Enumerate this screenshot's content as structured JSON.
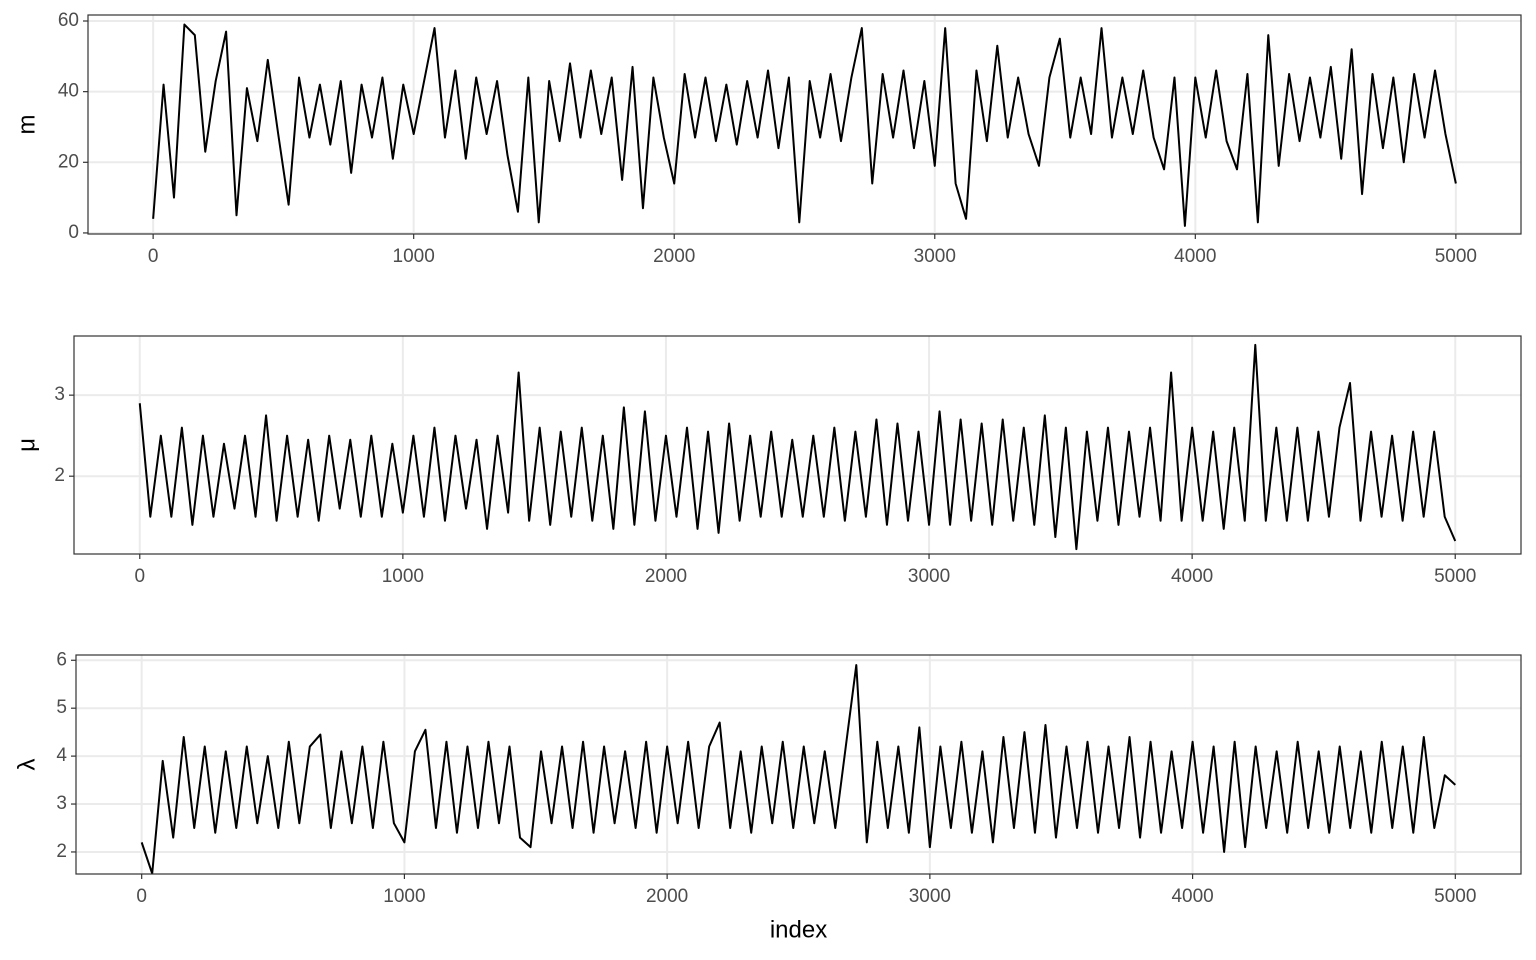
{
  "chart_data": [
    {
      "type": "line",
      "y_label": "m",
      "x": [
        0,
        40,
        80,
        120,
        160,
        200,
        240,
        280,
        320,
        360,
        400,
        440,
        480,
        520,
        560,
        600,
        640,
        680,
        720,
        760,
        800,
        840,
        880,
        920,
        960,
        1000,
        1040,
        1080,
        1120,
        1160,
        1200,
        1240,
        1280,
        1320,
        1360,
        1400,
        1440,
        1480,
        1520,
        1560,
        1600,
        1640,
        1680,
        1720,
        1760,
        1800,
        1840,
        1880,
        1920,
        1960,
        2000,
        2040,
        2080,
        2120,
        2160,
        2200,
        2240,
        2280,
        2320,
        2360,
        2400,
        2440,
        2480,
        2520,
        2560,
        2600,
        2640,
        2680,
        2720,
        2760,
        2800,
        2840,
        2880,
        2920,
        2960,
        3000,
        3040,
        3080,
        3120,
        3160,
        3200,
        3240,
        3280,
        3320,
        3360,
        3400,
        3440,
        3480,
        3520,
        3560,
        3600,
        3640,
        3680,
        3720,
        3760,
        3800,
        3840,
        3880,
        3920,
        3960,
        4000,
        4040,
        4080,
        4120,
        4160,
        4200,
        4240,
        4280,
        4320,
        4360,
        4400,
        4440,
        4480,
        4520,
        4560,
        4600,
        4640,
        4680,
        4720,
        4760,
        4800,
        4840,
        4880,
        4920,
        4960,
        5000
      ],
      "series": [
        {
          "color": "#000000",
          "values": [
            4,
            42,
            10,
            59,
            56,
            23,
            43,
            57,
            5,
            41,
            26,
            49,
            28,
            8,
            44,
            27,
            42,
            25,
            43,
            17,
            42,
            27,
            44,
            21,
            42,
            28,
            43,
            58,
            27,
            46,
            21,
            44,
            28,
            43,
            22,
            6,
            44,
            3,
            43,
            26,
            48,
            27,
            46,
            28,
            44,
            15,
            47,
            7,
            44,
            27,
            14,
            45,
            27,
            44,
            26,
            42,
            25,
            43,
            27,
            46,
            24,
            44,
            3,
            43,
            27,
            45,
            26,
            44,
            58,
            14,
            45,
            27,
            46,
            24,
            43,
            19,
            58,
            14,
            4,
            46,
            26,
            53,
            27,
            44,
            28,
            19,
            44,
            55,
            27,
            44,
            28,
            58,
            27,
            44,
            28,
            46,
            27,
            18,
            44,
            2,
            44,
            27,
            46,
            26,
            18,
            45,
            3,
            56,
            19,
            45,
            26,
            44,
            27,
            47,
            21,
            52,
            11,
            45,
            24,
            44,
            20,
            45,
            27,
            46,
            28,
            14
          ]
        }
      ],
      "xlim": [
        -250,
        5250
      ],
      "ylim": [
        -0.3,
        61.7
      ],
      "xticks": [
        0,
        1000,
        2000,
        3000,
        4000,
        5000
      ],
      "yticks": [
        0,
        20,
        40,
        60
      ],
      "grid": true
    },
    {
      "type": "line",
      "y_label": "μ",
      "x": [
        0,
        40,
        80,
        120,
        160,
        200,
        240,
        280,
        320,
        360,
        400,
        440,
        480,
        520,
        560,
        600,
        640,
        680,
        720,
        760,
        800,
        840,
        880,
        920,
        960,
        1000,
        1040,
        1080,
        1120,
        1160,
        1200,
        1240,
        1280,
        1320,
        1360,
        1400,
        1440,
        1480,
        1520,
        1560,
        1600,
        1640,
        1680,
        1720,
        1760,
        1800,
        1840,
        1880,
        1920,
        1960,
        2000,
        2040,
        2080,
        2120,
        2160,
        2200,
        2240,
        2280,
        2320,
        2360,
        2400,
        2440,
        2480,
        2520,
        2560,
        2600,
        2640,
        2680,
        2720,
        2760,
        2800,
        2840,
        2880,
        2920,
        2960,
        3000,
        3040,
        3080,
        3120,
        3160,
        3200,
        3240,
        3280,
        3320,
        3360,
        3400,
        3440,
        3480,
        3520,
        3560,
        3600,
        3640,
        3680,
        3720,
        3760,
        3800,
        3840,
        3880,
        3920,
        3960,
        4000,
        4040,
        4080,
        4120,
        4160,
        4200,
        4240,
        4280,
        4320,
        4360,
        4400,
        4440,
        4480,
        4520,
        4560,
        4600,
        4640,
        4680,
        4720,
        4760,
        4800,
        4840,
        4880,
        4920,
        4960,
        5000
      ],
      "series": [
        {
          "color": "#000000",
          "values": [
            2.9,
            1.5,
            2.5,
            1.5,
            2.6,
            1.4,
            2.5,
            1.5,
            2.4,
            1.6,
            2.5,
            1.5,
            2.75,
            1.45,
            2.5,
            1.5,
            2.45,
            1.45,
            2.5,
            1.6,
            2.45,
            1.5,
            2.5,
            1.5,
            2.4,
            1.55,
            2.5,
            1.5,
            2.6,
            1.45,
            2.5,
            1.6,
            2.45,
            1.35,
            2.5,
            1.55,
            3.28,
            1.45,
            2.6,
            1.4,
            2.55,
            1.5,
            2.6,
            1.45,
            2.5,
            1.35,
            2.85,
            1.4,
            2.8,
            1.45,
            2.5,
            1.5,
            2.6,
            1.35,
            2.55,
            1.3,
            2.65,
            1.45,
            2.5,
            1.5,
            2.55,
            1.5,
            2.45,
            1.5,
            2.5,
            1.5,
            2.6,
            1.45,
            2.55,
            1.5,
            2.7,
            1.4,
            2.65,
            1.45,
            2.55,
            1.4,
            2.8,
            1.4,
            2.7,
            1.45,
            2.65,
            1.4,
            2.7,
            1.45,
            2.6,
            1.4,
            2.75,
            1.25,
            2.6,
            1.1,
            2.55,
            1.45,
            2.6,
            1.4,
            2.55,
            1.5,
            2.6,
            1.45,
            3.28,
            1.45,
            2.6,
            1.45,
            2.55,
            1.35,
            2.6,
            1.45,
            3.62,
            1.45,
            2.6,
            1.45,
            2.6,
            1.45,
            2.55,
            1.5,
            2.6,
            3.15,
            1.45,
            2.55,
            1.5,
            2.5,
            1.45,
            2.55,
            1.5,
            2.55,
            1.5,
            1.2
          ]
        }
      ],
      "xlim": [
        -250,
        5250
      ],
      "ylim": [
        1.04,
        3.73
      ],
      "xticks": [
        0,
        1000,
        2000,
        3000,
        4000,
        5000
      ],
      "yticks": [
        2,
        3
      ],
      "grid": true
    },
    {
      "type": "line",
      "y_label": "λ",
      "x_label": "index",
      "x": [
        0,
        40,
        80,
        120,
        160,
        200,
        240,
        280,
        320,
        360,
        400,
        440,
        480,
        520,
        560,
        600,
        640,
        680,
        720,
        760,
        800,
        840,
        880,
        920,
        960,
        1000,
        1040,
        1080,
        1120,
        1160,
        1200,
        1240,
        1280,
        1320,
        1360,
        1400,
        1440,
        1480,
        1520,
        1560,
        1600,
        1640,
        1680,
        1720,
        1760,
        1800,
        1840,
        1880,
        1920,
        1960,
        2000,
        2040,
        2080,
        2120,
        2160,
        2200,
        2240,
        2280,
        2320,
        2360,
        2400,
        2440,
        2480,
        2520,
        2560,
        2600,
        2640,
        2680,
        2720,
        2760,
        2800,
        2840,
        2880,
        2920,
        2960,
        3000,
        3040,
        3080,
        3120,
        3160,
        3200,
        3240,
        3280,
        3320,
        3360,
        3400,
        3440,
        3480,
        3520,
        3560,
        3600,
        3640,
        3680,
        3720,
        3760,
        3800,
        3840,
        3880,
        3920,
        3960,
        4000,
        4040,
        4080,
        4120,
        4160,
        4200,
        4240,
        4280,
        4320,
        4360,
        4400,
        4440,
        4480,
        4520,
        4560,
        4600,
        4640,
        4680,
        4720,
        4760,
        4800,
        4840,
        4880,
        4920,
        4960,
        5000
      ],
      "series": [
        {
          "color": "#000000",
          "values": [
            2.2,
            1.55,
            3.9,
            2.3,
            4.4,
            2.5,
            4.2,
            2.4,
            4.1,
            2.5,
            4.2,
            2.6,
            4.0,
            2.5,
            4.3,
            2.6,
            4.2,
            4.45,
            2.5,
            4.1,
            2.6,
            4.2,
            2.5,
            4.3,
            2.6,
            2.2,
            4.1,
            4.55,
            2.5,
            4.3,
            2.4,
            4.2,
            2.5,
            4.3,
            2.6,
            4.2,
            2.3,
            2.1,
            4.1,
            2.6,
            4.2,
            2.5,
            4.3,
            2.4,
            4.2,
            2.6,
            4.1,
            2.5,
            4.3,
            2.4,
            4.2,
            2.6,
            4.3,
            2.5,
            4.2,
            4.7,
            2.5,
            4.1,
            2.4,
            4.2,
            2.6,
            4.3,
            2.5,
            4.2,
            2.6,
            4.1,
            2.5,
            4.2,
            5.9,
            2.2,
            4.3,
            2.5,
            4.2,
            2.4,
            4.6,
            2.1,
            4.2,
            2.5,
            4.3,
            2.4,
            4.1,
            2.2,
            4.4,
            2.5,
            4.5,
            2.4,
            4.65,
            2.3,
            4.2,
            2.5,
            4.3,
            2.4,
            4.2,
            2.5,
            4.4,
            2.3,
            4.3,
            2.4,
            4.1,
            2.5,
            4.3,
            2.4,
            4.2,
            2.0,
            4.3,
            2.1,
            4.2,
            2.5,
            4.1,
            2.4,
            4.3,
            2.5,
            4.1,
            2.4,
            4.2,
            2.5,
            4.1,
            2.4,
            4.3,
            2.5,
            4.2,
            2.4,
            4.4,
            2.5,
            3.6,
            3.4
          ]
        }
      ],
      "xlim": [
        -250,
        5250
      ],
      "ylim": [
        1.54,
        6.11
      ],
      "xticks": [
        0,
        1000,
        2000,
        3000,
        4000,
        5000
      ],
      "yticks": [
        2,
        3,
        4,
        5,
        6
      ],
      "grid": true
    }
  ]
}
